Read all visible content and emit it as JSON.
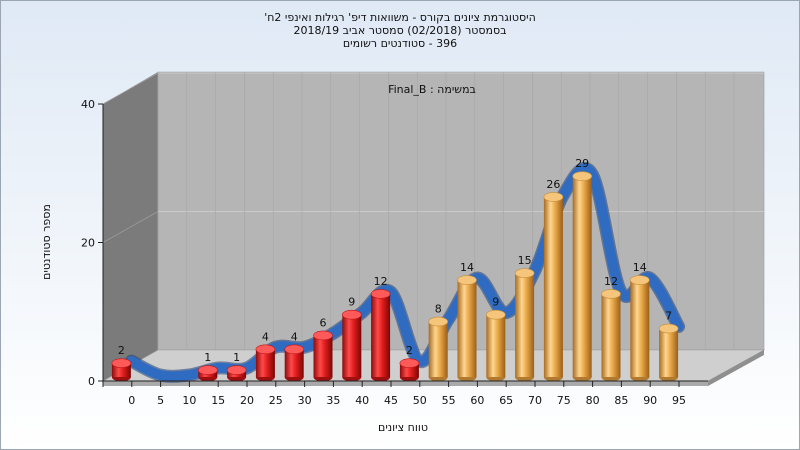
{
  "chart_data": {
    "type": "bar",
    "title": [
      "היסטוגרמת ציונים בקורס - משוואות דיפ' רגילות ואינפי 2ח'",
      "בסמסטר (02/2018) סמסטר אביב 2018/19",
      "396 - סטודנטים רשומים"
    ],
    "inner_label": "במשימה : Final_B",
    "xlabel": "טווח ציונים",
    "ylabel": "מספר סטודנטים",
    "x_ticks": [
      "0",
      "5",
      "10",
      "15",
      "20",
      "25",
      "30",
      "35",
      "40",
      "45",
      "50",
      "55",
      "60",
      "65",
      "70",
      "75",
      "80",
      "85",
      "90",
      "95"
    ],
    "y_ticks": [
      0,
      20,
      40
    ],
    "ylim": [
      0,
      40
    ],
    "categories": [
      "0",
      "5",
      "10",
      "15",
      "20",
      "25",
      "30",
      "35",
      "40",
      "45",
      "50",
      "55",
      "60",
      "65",
      "70",
      "75",
      "80",
      "85",
      "90",
      "95"
    ],
    "series": [
      {
        "values": [
          2,
          null,
          null,
          1,
          1,
          4,
          4,
          6,
          9,
          12,
          2,
          8,
          14,
          9,
          15,
          26,
          29,
          12,
          14,
          7
        ]
      }
    ],
    "bar_colors": {
      "fail": "#d41818",
      "pass": "#e0a040"
    },
    "pass_from_index": 11,
    "curve_color": "#2f6bc0"
  }
}
